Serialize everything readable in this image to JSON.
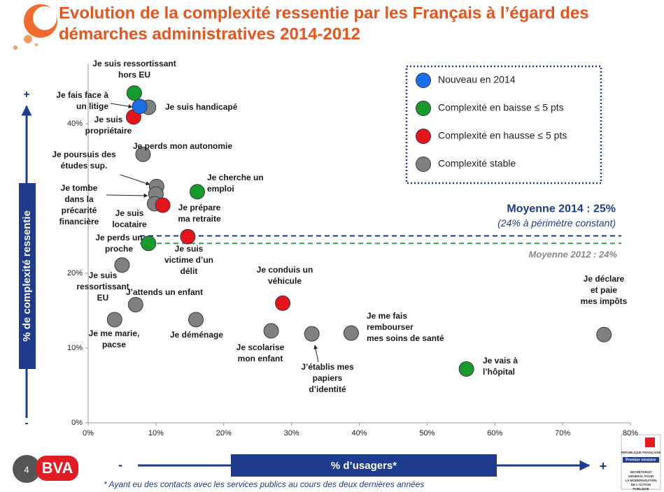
{
  "chart_data": {
    "type": "scatter",
    "title": [
      "Evolution de la complexité ressentie par les Français à l’égard des",
      "démarches administratives 2014-2012"
    ],
    "ylabel": "% de complexité ressentie",
    "xlabel": "% d’usagers*",
    "axis_markers": {
      "high": "+",
      "low": "-"
    },
    "xlim": [
      0,
      80
    ],
    "ylim": [
      0,
      48
    ],
    "xticks": [
      {
        "value": 0,
        "label": "0%"
      },
      {
        "value": 10,
        "label": "10%"
      },
      {
        "value": 20,
        "label": "20%"
      },
      {
        "value": 30,
        "label": "30%"
      },
      {
        "value": 40,
        "label": "40%"
      },
      {
        "value": 50,
        "label": "50%"
      },
      {
        "value": 60,
        "label": "60%"
      },
      {
        "value": 70,
        "label": "70%"
      },
      {
        "value": 80,
        "label": "80%"
      }
    ],
    "yticks": [
      {
        "value": 0,
        "label": "0%"
      },
      {
        "value": 10,
        "label": "10%"
      },
      {
        "value": 20,
        "label": "20%"
      },
      {
        "value": 40,
        "label": "40%"
      }
    ],
    "legend": "top-right",
    "series": [
      {
        "name": "Nouveau en 2014",
        "color": "#1a6ee8",
        "x": [
          7.6
        ],
        "values": [
          42.3
        ],
        "labels": [
          [
            "Je fais face à",
            "un litige"
          ]
        ]
      },
      {
        "name": "Complexité en baisse ≤ 5 pts",
        "color": "#159a2b",
        "x": [
          6.8,
          16.1,
          8.9,
          55.8
        ],
        "values": [
          44.1,
          30.9,
          24.0,
          7.2
        ],
        "labels": [
          [
            "Je suis ressortissant",
            "hors EU"
          ],
          [
            "Je cherche un",
            "emploi"
          ],
          [
            "Je perds un",
            "proche"
          ],
          [
            "Je vais à",
            "l’hôpital"
          ]
        ]
      },
      {
        "name": "Complexité en hausse ≤ 5 pts",
        "color": "#e3141c",
        "x": [
          6.7,
          11.0,
          14.7,
          28.7
        ],
        "values": [
          40.9,
          29.1,
          24.9,
          16.0
        ],
        "labels": [
          [
            "Je suis",
            "propriétaire"
          ],
          [
            "Je prépare",
            "ma retraite"
          ],
          [
            "Je suis",
            "victime d’un",
            "délit"
          ],
          [
            "Je conduis un",
            "véhicule"
          ]
        ]
      },
      {
        "name": "Complexité stable",
        "color": "#808080",
        "x": [
          8.9,
          8.1,
          10.1,
          10.0,
          9.8,
          5.0,
          7.0,
          3.9,
          15.9,
          27.0,
          33.0,
          38.8,
          76.1
        ],
        "values": [
          42.2,
          35.9,
          31.6,
          30.6,
          29.3,
          21.1,
          15.8,
          13.8,
          13.8,
          12.3,
          11.9,
          12.0,
          11.8
        ],
        "labels": [
          [
            "Je suis handicapé"
          ],
          [
            "Je perds mon autonomie"
          ],
          [
            "Je poursuis des",
            "études sup."
          ],
          [
            "Je tombe",
            "dans la",
            "précarité",
            "financière"
          ],
          [
            "Je suis",
            "locataire"
          ],
          [
            "Je suis",
            "ressortissant",
            "EU"
          ],
          [
            "J’attends un enfant"
          ],
          [
            "Je me marie,",
            "pacse"
          ],
          [
            "Je déménage"
          ],
          [
            "Je scolarise",
            "mon enfant"
          ],
          [
            "J’établis mes",
            "papiers",
            "d’identité"
          ],
          [
            "Je me fais",
            "rembourser",
            "mes soins de santé"
          ],
          [
            "Je déclare",
            "et paie",
            "mes impôts"
          ]
        ]
      }
    ],
    "reference_lines": [
      {
        "label": "Moyenne 2014 : 25%",
        "note": "(24% à périmètre constant)",
        "value": 25,
        "color": "#1f3b8c"
      },
      {
        "label": "Moyenne 2012 : 24%",
        "value": 24,
        "color": "#2ea05a"
      }
    ],
    "footnote": "* Ayant eu des contacts avec les services publics au cours des deux dernières années",
    "page_number": "4",
    "logo": "BVA",
    "gov_logo": [
      "RÉPUBLIQUE FRANÇAISE",
      "Premier ministre",
      "SECRÉTARIAT",
      "GÉNÉRAL POUR",
      "LA MODERNISATION",
      "DE L’ACTION",
      "PUBLIQUE"
    ]
  }
}
